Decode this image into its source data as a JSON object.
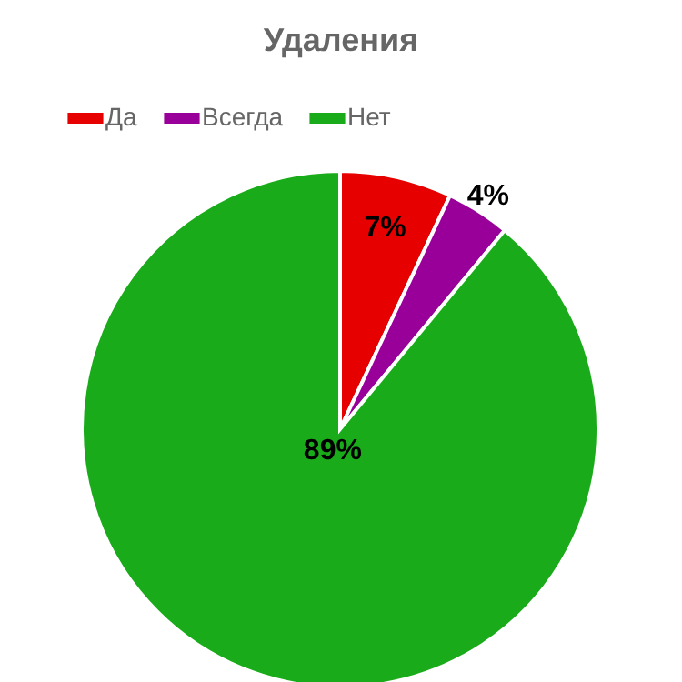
{
  "chart_data": {
    "type": "pie",
    "title": "Удаления",
    "categories": [
      "Да",
      "Всегда",
      "Нет"
    ],
    "values": [
      7,
      4,
      89
    ],
    "colors": [
      "#e60000",
      "#990099",
      "#1aab1a"
    ],
    "value_labels": [
      "7%",
      "4%",
      "89%"
    ],
    "legend": "top"
  }
}
